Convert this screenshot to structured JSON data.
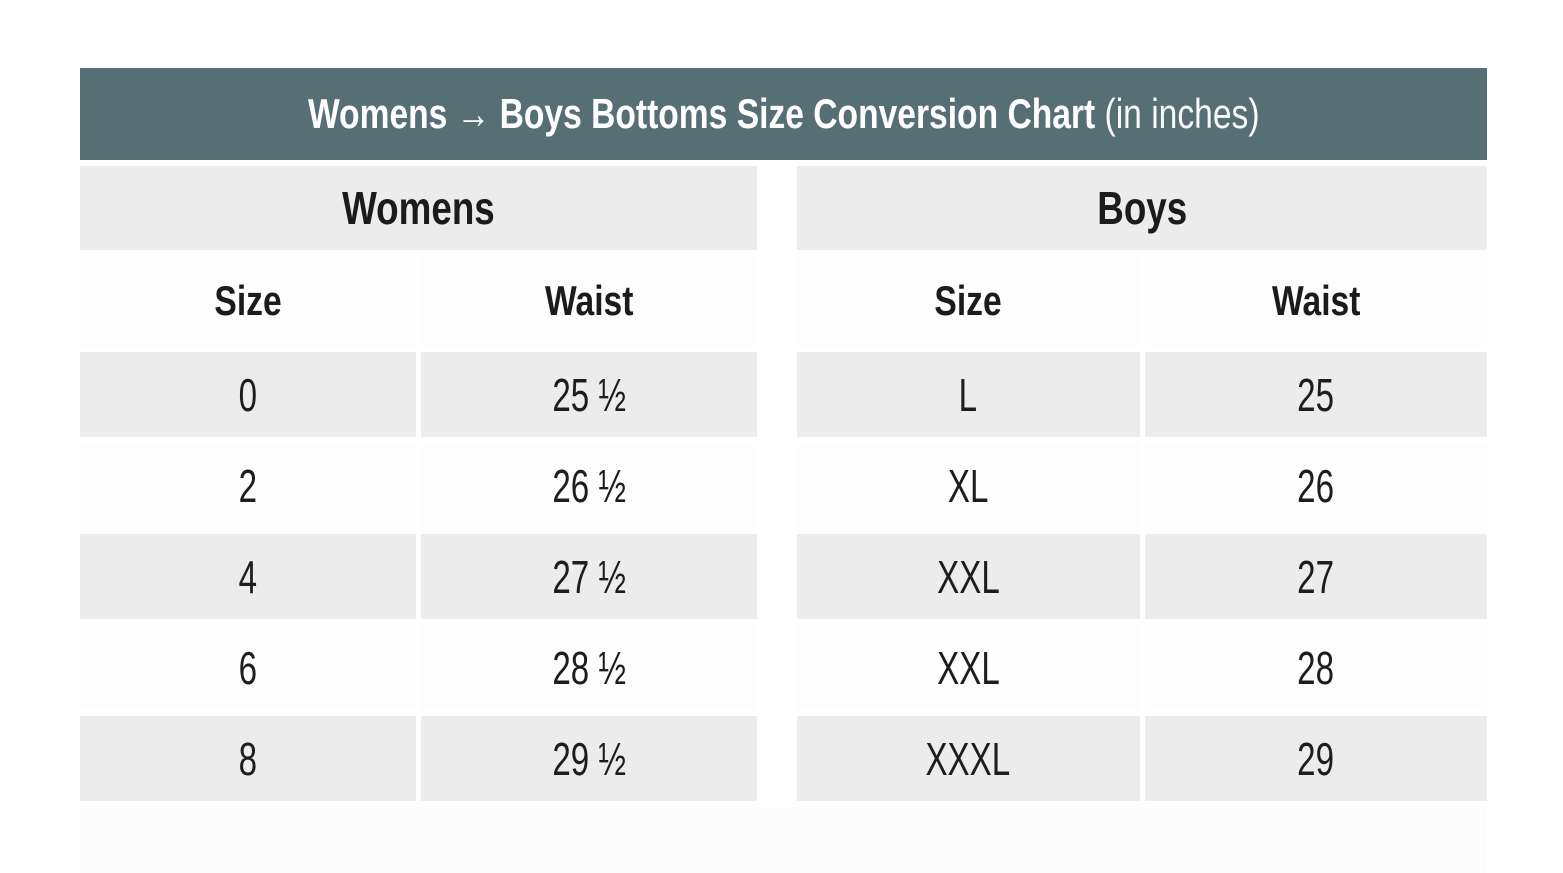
{
  "title": {
    "main": "Womens → Boys Bottoms Size Conversion Chart",
    "suffix": "(in inches)"
  },
  "colors": {
    "title_bar_bg": "#566F75",
    "title_text": "#ffffff",
    "row_shaded_bg": "#ececec",
    "row_plain_bg": "#fdfdfd",
    "body_text": "#1b1b1b",
    "page_bg": "#ffffff"
  },
  "sections": [
    {
      "name": "Womens",
      "columns": [
        "Size",
        "Waist"
      ],
      "rows": [
        [
          "0",
          "25 ½"
        ],
        [
          "2",
          "26 ½"
        ],
        [
          "4",
          "27 ½"
        ],
        [
          "6",
          "28 ½"
        ],
        [
          "8",
          "29 ½"
        ]
      ]
    },
    {
      "name": "Boys",
      "columns": [
        "Size",
        "Waist"
      ],
      "rows": [
        [
          "L",
          "25"
        ],
        [
          "XL",
          "26"
        ],
        [
          "XXL",
          "27"
        ],
        [
          "XXL",
          "28"
        ],
        [
          "XXXL",
          "29"
        ]
      ]
    }
  ],
  "chart_data": {
    "type": "table",
    "title": "Womens → Boys Bottoms Size Conversion Chart (in inches)",
    "units": "inches",
    "sections": [
      {
        "name": "Womens",
        "columns": [
          "Size",
          "Waist"
        ],
        "rows": [
          [
            0,
            25.5
          ],
          [
            2,
            26.5
          ],
          [
            4,
            27.5
          ],
          [
            6,
            28.5
          ],
          [
            8,
            29.5
          ]
        ]
      },
      {
        "name": "Boys",
        "columns": [
          "Size",
          "Waist"
        ],
        "rows": [
          [
            "L",
            25
          ],
          [
            "XL",
            26
          ],
          [
            "XXL",
            27
          ],
          [
            "XXL",
            28
          ],
          [
            "XXXL",
            29
          ]
        ]
      }
    ]
  }
}
